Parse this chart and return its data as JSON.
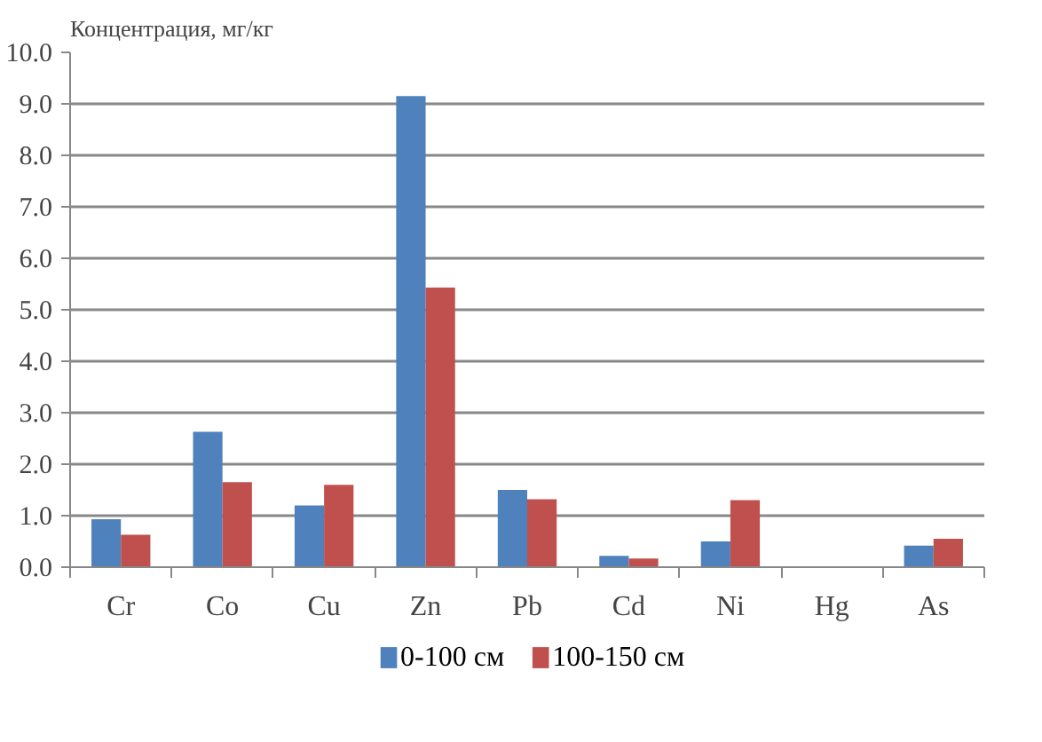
{
  "chart_data": {
    "type": "bar",
    "ylabel": "Концентрация, мг/кг",
    "categories": [
      "Cr",
      "Co",
      "Cu",
      "Zn",
      "Pb",
      "Cd",
      "Ni",
      "Hg",
      "As"
    ],
    "series": [
      {
        "name": "0-100 см",
        "color": "#4f81bd",
        "values": [
          0.93,
          2.63,
          1.2,
          9.15,
          1.5,
          0.22,
          0.5,
          0,
          0.42
        ]
      },
      {
        "name": "100-150 см",
        "color": "#c0504d",
        "values": [
          0.63,
          1.65,
          1.6,
          5.43,
          1.32,
          0.17,
          1.3,
          0,
          0.55
        ]
      }
    ],
    "ylim": [
      0,
      10
    ],
    "yticks": [
      {
        "value": 0,
        "label": "0.0"
      },
      {
        "value": 1,
        "label": "1.0"
      },
      {
        "value": 2,
        "label": "2.0"
      },
      {
        "value": 3,
        "label": "3.0"
      },
      {
        "value": 4,
        "label": "4.0"
      },
      {
        "value": 5,
        "label": "5.0"
      },
      {
        "value": 6,
        "label": "6.0"
      },
      {
        "value": 7,
        "label": "7.0"
      },
      {
        "value": 8,
        "label": "8.0"
      },
      {
        "value": 9,
        "label": "9.0"
      },
      {
        "value": 10,
        "label": "10.0"
      }
    ],
    "grid": "y",
    "legend": "bottom"
  }
}
